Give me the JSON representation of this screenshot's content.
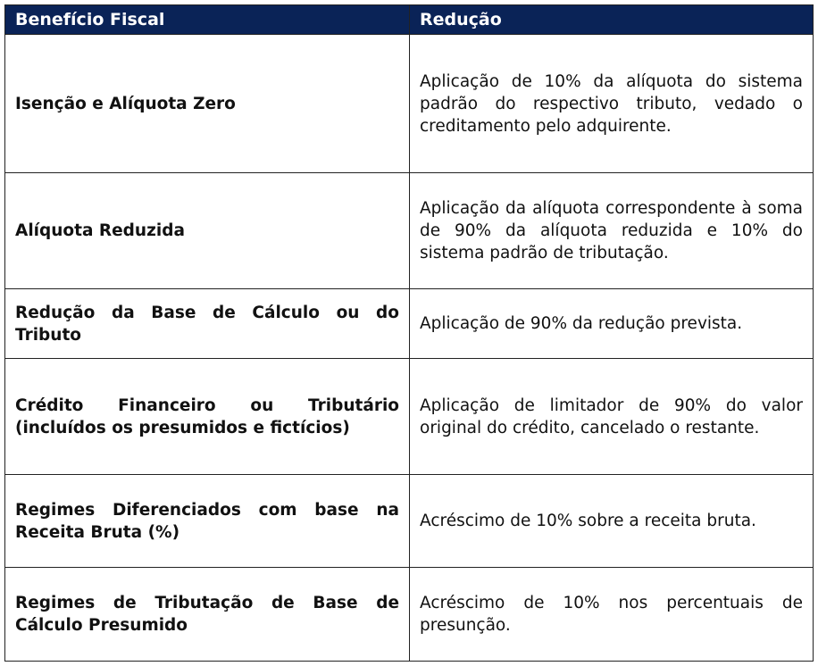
{
  "table": {
    "headers": [
      "Benefício Fiscal",
      "Redução"
    ],
    "header_color": "#0a2357",
    "rows": [
      {
        "benefit": "Isenção e Alíquota Zero",
        "reduction": "Aplicação de 10% da alíquota do sistema padrão do respectivo tributo, vedado o creditamento pelo adquirente."
      },
      {
        "benefit": "Alíquota Reduzida",
        "reduction": "Aplicação da alíquota correspondente à soma de 90% da alíquota reduzida e 10% do sistema padrão de tributação."
      },
      {
        "benefit": "Redução da Base de Cálculo ou do Tributo",
        "reduction": "Aplicação de 90% da redução prevista."
      },
      {
        "benefit": "Crédito Financeiro ou Tributário (incluídos os presumidos e fictícios)",
        "reduction": "Aplicação de limitador de 90% do valor original do crédito, cancelado o restante."
      },
      {
        "benefit": "Regimes Diferenciados com base na Receita Bruta (%)",
        "reduction": "Acréscimo de 10% sobre a receita bruta."
      },
      {
        "benefit": "Regimes de Tributação de Base de Cálculo Presumido",
        "reduction": "Acréscimo de 10% nos percentuais de presunção."
      }
    ]
  }
}
